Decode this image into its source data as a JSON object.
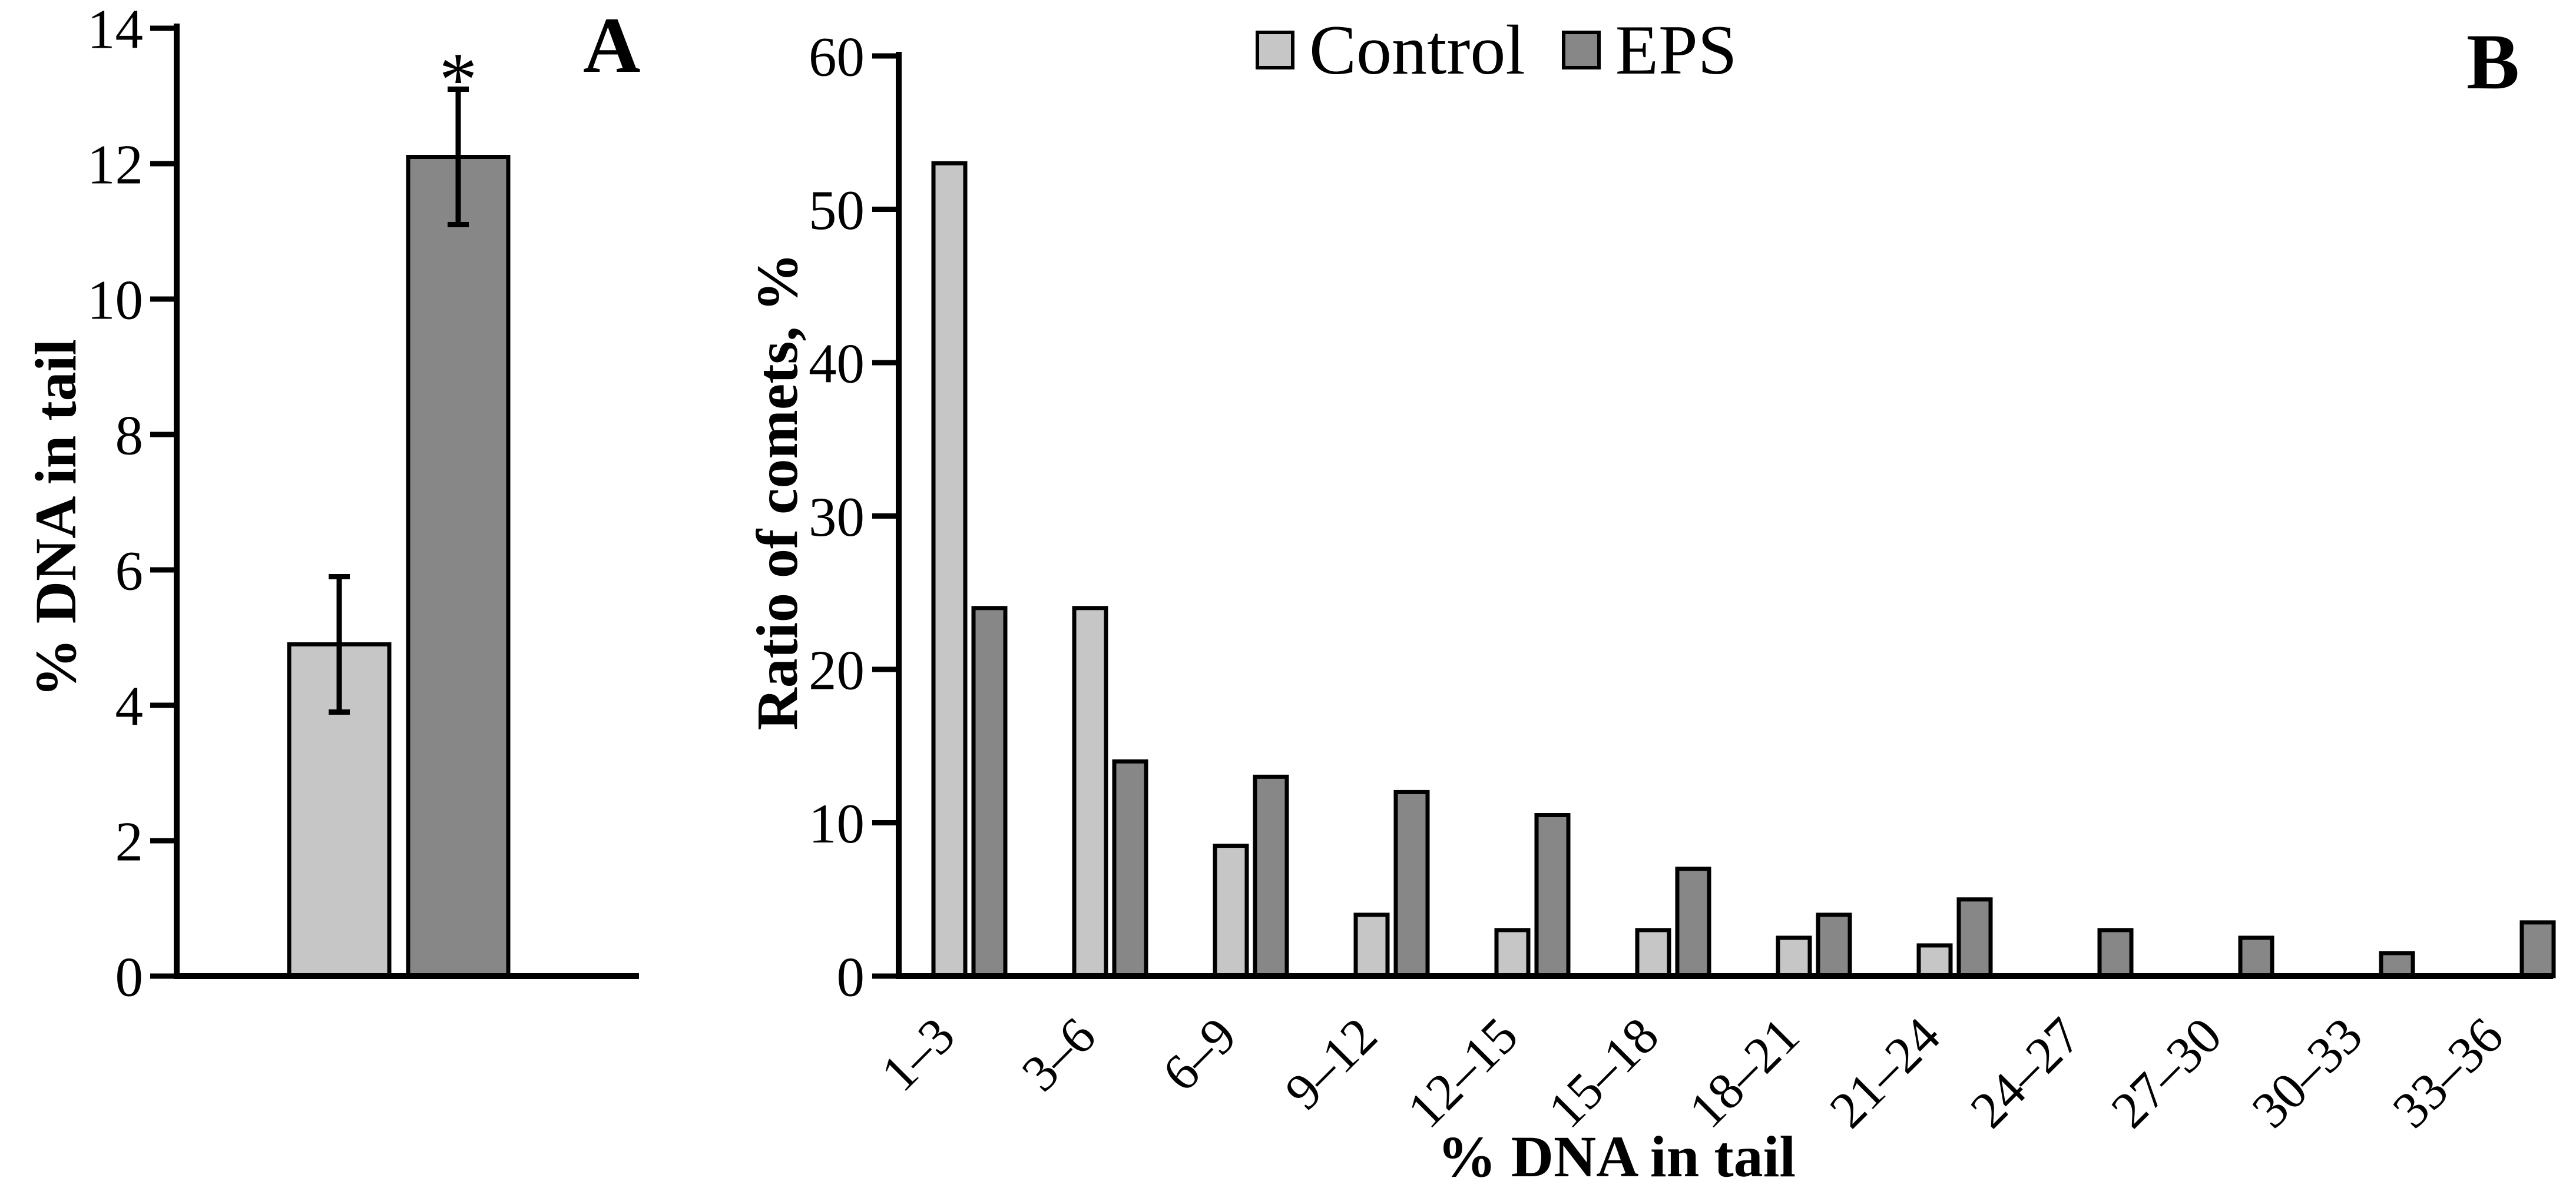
{
  "figure": {
    "background": "#ffffff",
    "text_color": "#000000",
    "panel_labels": [
      "A",
      "B"
    ]
  },
  "chart_data": [
    {
      "type": "bar",
      "panel": "A",
      "title": "",
      "xlabel": "",
      "ylabel": "% DNA in tail",
      "categories": [
        "Control",
        "EPS"
      ],
      "values": [
        4.9,
        12.1
      ],
      "errors": [
        1.0,
        1.0
      ],
      "significance": [
        "",
        "*"
      ],
      "bar_colors": [
        "#c6c6c6",
        "#878787"
      ],
      "bar_outline": "#000000",
      "ylim": [
        0,
        14
      ],
      "yticks": [
        0,
        2,
        4,
        6,
        8,
        10,
        12,
        14
      ],
      "grid": false,
      "legend_position": "none"
    },
    {
      "type": "bar",
      "panel": "B",
      "title": "",
      "xlabel": "% DNA in tail",
      "ylabel": "Ratio of comets, %",
      "categories": [
        "1–3",
        "3–6",
        "6–9",
        "9–12",
        "12–15",
        "15–18",
        "18–21",
        "21–24",
        "24–27",
        "27–30",
        "30–33",
        "33–36"
      ],
      "series": [
        {
          "name": "Control",
          "color": "#c6c6c6",
          "values": [
            53,
            24,
            8.5,
            4,
            3,
            3,
            2.5,
            2,
            0,
            0,
            0,
            0
          ]
        },
        {
          "name": "EPS",
          "color": "#878787",
          "values": [
            24,
            14,
            13,
            12,
            10.5,
            7,
            4,
            5,
            3,
            2.5,
            1.5,
            3.5
          ]
        }
      ],
      "bar_outline": "#000000",
      "ylim": [
        0,
        60
      ],
      "yticks": [
        0,
        10,
        20,
        30,
        40,
        50,
        60
      ],
      "grid": false,
      "legend_position": "top"
    }
  ]
}
